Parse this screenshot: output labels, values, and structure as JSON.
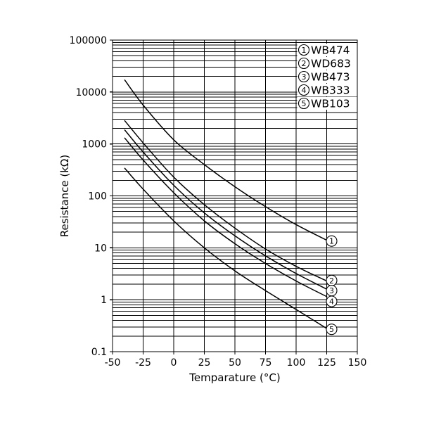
{
  "chart_data": {
    "type": "line",
    "title": "",
    "xlabel": "Temparature (°C)",
    "ylabel": "Resistance (kΩ)",
    "xlim": [
      -50,
      150
    ],
    "ylim": [
      0.1,
      100000
    ],
    "y_scale": "log10",
    "x_ticks": [
      -50,
      -25,
      0,
      25,
      50,
      75,
      100,
      125,
      150
    ],
    "y_ticks": [
      0.1,
      1,
      10,
      100,
      1000,
      10000,
      100000
    ],
    "grid": "major and minor solid black gridlines",
    "legend_position": "top-right-inside",
    "series": [
      {
        "marker": "1",
        "name": "WB474",
        "x": [
          -40,
          -25,
          0,
          25,
          50,
          75,
          100,
          125
        ],
        "y": [
          17000,
          5600,
          1200,
          400,
          150,
          62,
          28,
          14
        ],
        "end_label_r": 13.5
      },
      {
        "marker": "2",
        "name": "WD683",
        "x": [
          -40,
          -25,
          0,
          25,
          50,
          75,
          100,
          125
        ],
        "y": [
          2800,
          1050,
          230,
          68,
          24,
          9.5,
          4.4,
          2.3
        ],
        "end_label_r": 2.35
      },
      {
        "marker": "3",
        "name": "WB473",
        "x": [
          -40,
          -25,
          0,
          25,
          50,
          75,
          100,
          125
        ],
        "y": [
          1850,
          700,
          160,
          47,
          17,
          7,
          3.2,
          1.6
        ],
        "end_label_r": 1.5
      },
      {
        "marker": "4",
        "name": "WB333",
        "x": [
          -40,
          -25,
          0,
          25,
          50,
          75,
          100,
          125
        ],
        "y": [
          1300,
          490,
          115,
          33,
          12,
          5,
          2.3,
          1.15
        ],
        "end_label_r": 0.93
      },
      {
        "marker": "5",
        "name": "WB103",
        "x": [
          -40,
          -25,
          0,
          25,
          50,
          75,
          100,
          125
        ],
        "y": [
          340,
          135,
          33,
          10,
          3.6,
          1.5,
          0.65,
          0.28
        ],
        "end_label_r": 0.27
      }
    ]
  },
  "colors": {
    "line": "#000000",
    "grid": "#000000",
    "background": "#ffffff",
    "text": "#000000"
  }
}
